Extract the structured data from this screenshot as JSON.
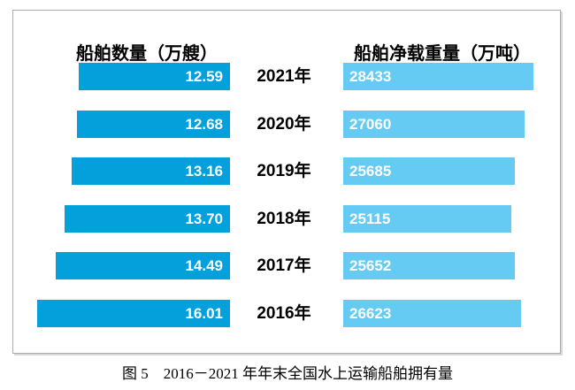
{
  "caption": "图 5　2016－2021 年年末全国水上运输船舶拥有量",
  "colors": {
    "left_bar": "#04A0DC",
    "right_bar": "#65CBF3",
    "bar_value_text": "#ffffff",
    "label_text": "#000000",
    "frame_border": "#ababab"
  },
  "chart_data": {
    "type": "bar",
    "variant": "tornado-horizontal",
    "title": "图 5　2016－2021 年年末全国水上运输船舶拥有量",
    "left_header": "船舶数量（万艘）",
    "right_header": "船舶净载重量（万吨）",
    "categories": [
      "2021年",
      "2020年",
      "2019年",
      "2018年",
      "2017年",
      "2016年"
    ],
    "series": [
      {
        "name": "船舶数量（万艘）",
        "side": "left",
        "values": [
          12.59,
          12.68,
          13.16,
          13.7,
          14.49,
          16.01
        ],
        "decimals": 2,
        "color": "#04A0DC",
        "value_color": "#ffffff",
        "axis_range": [
          0,
          16.01
        ]
      },
      {
        "name": "船舶净载重量（万吨）",
        "side": "right",
        "values": [
          28433,
          27060,
          25685,
          25115,
          25652,
          26623
        ],
        "decimals": 0,
        "color": "#65CBF3",
        "value_color": "#ffffff",
        "axis_range": [
          0,
          28433
        ]
      }
    ],
    "value_labels": "inside-bars",
    "grid": false,
    "legend_position": "none"
  }
}
